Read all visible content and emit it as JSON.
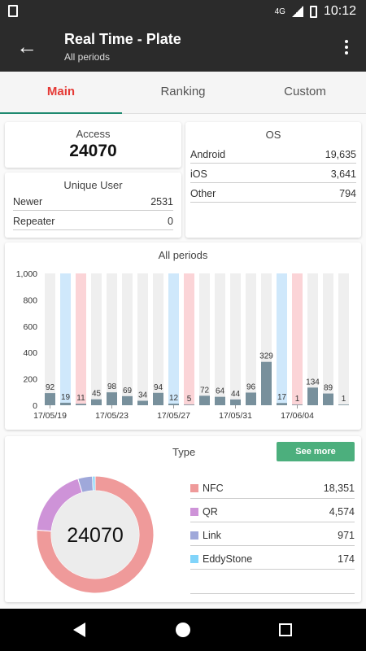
{
  "status": {
    "network": "4G",
    "time": "10:12"
  },
  "appbar": {
    "title": "Real Time - Plate",
    "subtitle": "All periods"
  },
  "tabs": [
    {
      "label": "Main",
      "active": true
    },
    {
      "label": "Ranking",
      "active": false
    },
    {
      "label": "Custom",
      "active": false
    }
  ],
  "access": {
    "label": "Access",
    "value": "24070"
  },
  "unique_user": {
    "label": "Unique User",
    "rows": [
      {
        "name": "Newer",
        "value": "2531"
      },
      {
        "name": "Repeater",
        "value": "0"
      }
    ]
  },
  "os": {
    "label": "OS",
    "rows": [
      {
        "name": "Android",
        "value": "19,635"
      },
      {
        "name": "iOS",
        "value": "3,641"
      },
      {
        "name": "Other",
        "value": "794"
      }
    ]
  },
  "chart_data": {
    "type": "bar",
    "title": "All periods",
    "ylim": [
      0,
      1000
    ],
    "yticks": [
      "0",
      "200",
      "400",
      "600",
      "800",
      "1,000"
    ],
    "xticks": [
      "17/05/19",
      "17/05/23",
      "17/05/27",
      "17/05/31",
      "17/06/04"
    ],
    "values": [
      92,
      19,
      11,
      45,
      98,
      69,
      34,
      94,
      12,
      5,
      72,
      64,
      44,
      96,
      329,
      17,
      1,
      134,
      89,
      1
    ],
    "background": [
      "gray",
      "blue",
      "red",
      "gray",
      "gray",
      "gray",
      "gray",
      "gray",
      "blue",
      "red",
      "gray",
      "gray",
      "gray",
      "gray",
      "gray",
      "blue",
      "red",
      "gray",
      "gray",
      "gray"
    ],
    "bar_color": "#78909c",
    "blue_bg": "#cfe8fb",
    "red_bg": "#fbd4d7",
    "gray_bg": "#efefef"
  },
  "type_card": {
    "label": "Type",
    "see_more": "See more",
    "center_value": "24070",
    "items": [
      {
        "name": "NFC",
        "value": "18,351",
        "num": 18351,
        "color": "#ef9a9a"
      },
      {
        "name": "QR",
        "value": "4,574",
        "num": 4574,
        "color": "#ce93d8"
      },
      {
        "name": "Link",
        "value": "971",
        "num": 971,
        "color": "#9fa8da"
      },
      {
        "name": "EddyStone",
        "value": "174",
        "num": 174,
        "color": "#81d4fa"
      }
    ]
  }
}
